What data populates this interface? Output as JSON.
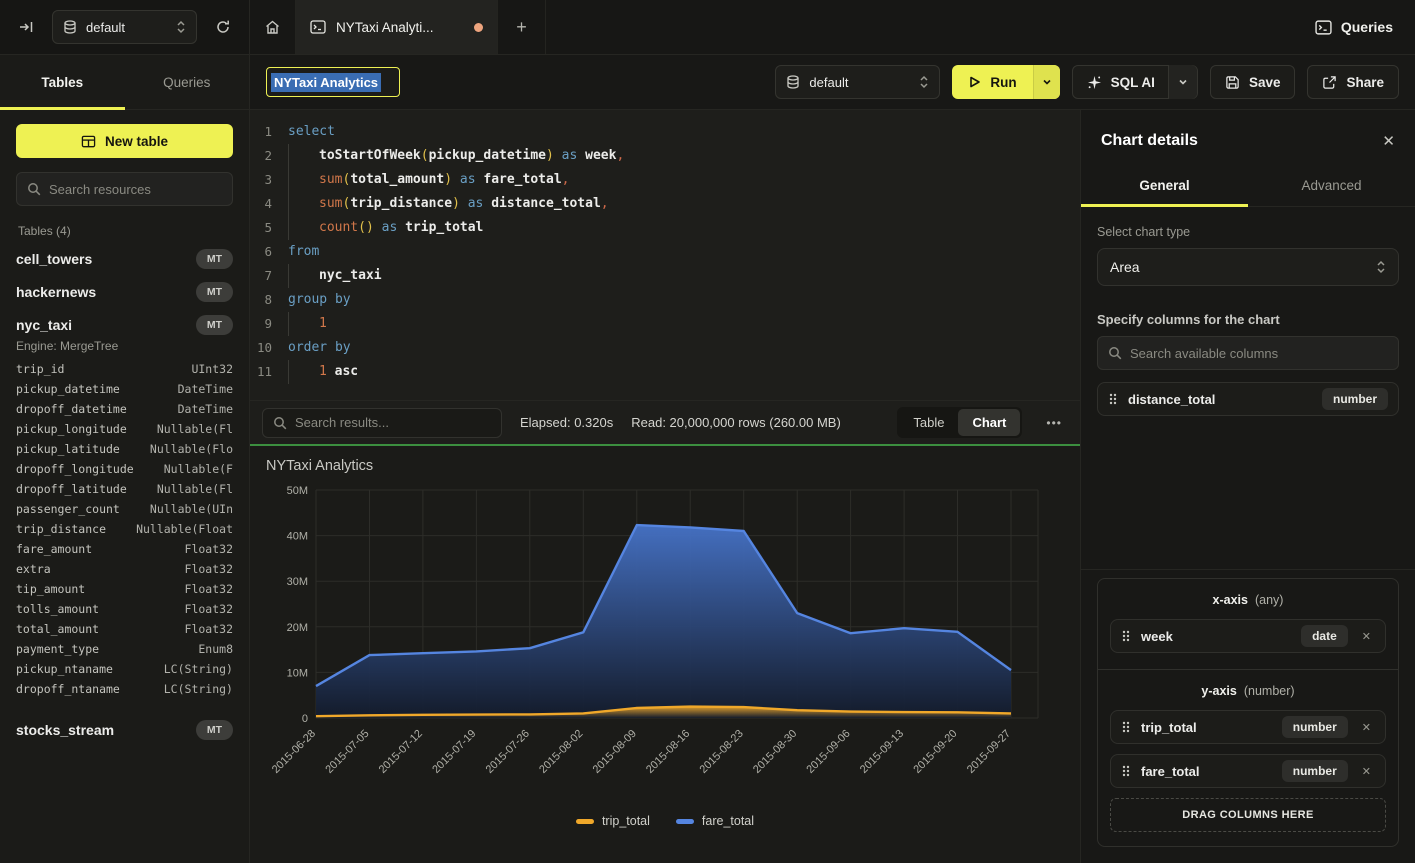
{
  "theme": {
    "accent": "#eef153",
    "sel": "#3a6db3",
    "dot": "#eda47e",
    "green": "#3c8f3f",
    "blue": "#5585e0",
    "orange": "#f0a82a"
  },
  "topbar": {
    "database_selector": "default",
    "tab_title": "NYTaxi Analyti...",
    "queries_label": "Queries",
    "plus": "+"
  },
  "sidebar": {
    "tab_tables": "Tables",
    "tab_queries": "Queries",
    "new_table_label": "New table",
    "search_placeholder": "Search resources",
    "section_label": "Tables (4)",
    "tables": [
      {
        "name": "cell_towers",
        "badge": "MT"
      },
      {
        "name": "hackernews",
        "badge": "MT"
      },
      {
        "name": "nyc_taxi",
        "badge": "MT",
        "engine": "Engine: MergeTree",
        "columns": [
          {
            "name": "trip_id",
            "type": "UInt32"
          },
          {
            "name": "pickup_datetime",
            "type": "DateTime"
          },
          {
            "name": "dropoff_datetime",
            "type": "DateTime"
          },
          {
            "name": "pickup_longitude",
            "type": "Nullable(Fl"
          },
          {
            "name": "pickup_latitude",
            "type": "Nullable(Flo"
          },
          {
            "name": "dropoff_longitude",
            "type": "Nullable(F"
          },
          {
            "name": "dropoff_latitude",
            "type": "Nullable(Fl"
          },
          {
            "name": "passenger_count",
            "type": "Nullable(UIn"
          },
          {
            "name": "trip_distance",
            "type": "Nullable(Float"
          },
          {
            "name": "fare_amount",
            "type": "Float32"
          },
          {
            "name": "extra",
            "type": "Float32"
          },
          {
            "name": "tip_amount",
            "type": "Float32"
          },
          {
            "name": "tolls_amount",
            "type": "Float32"
          },
          {
            "name": "total_amount",
            "type": "Float32"
          },
          {
            "name": "payment_type",
            "type": "Enum8"
          },
          {
            "name": "pickup_ntaname",
            "type": "LC(String)"
          },
          {
            "name": "dropoff_ntaname",
            "type": "LC(String)"
          }
        ]
      },
      {
        "name": "stocks_stream",
        "badge": "MT"
      }
    ]
  },
  "toolbar": {
    "query_title": "NYTaxi Analytics",
    "database_selector": "default",
    "run_label": "Run",
    "sql_ai_label": "SQL AI",
    "save_label": "Save",
    "share_label": "Share"
  },
  "editor": {
    "lines": [
      {
        "no": "1",
        "indent": 0,
        "tokens": [
          [
            "select",
            "kw"
          ]
        ]
      },
      {
        "no": "2",
        "indent": 1,
        "tokens": [
          [
            "toStartOfWeek",
            "fnb"
          ],
          [
            "(",
            "p"
          ],
          [
            "pickup_datetime",
            "id"
          ],
          [
            ")",
            "p"
          ],
          [
            " ",
            "pl"
          ],
          [
            "as",
            "kw"
          ],
          [
            " week",
            "id"
          ],
          [
            ",",
            "cm"
          ]
        ]
      },
      {
        "no": "3",
        "indent": 1,
        "tokens": [
          [
            "sum",
            "fn"
          ],
          [
            "(",
            "p"
          ],
          [
            "total_amount",
            "id"
          ],
          [
            ")",
            "p"
          ],
          [
            " ",
            "pl"
          ],
          [
            "as",
            "kw"
          ],
          [
            " fare_total",
            "id"
          ],
          [
            ",",
            "cm"
          ]
        ]
      },
      {
        "no": "4",
        "indent": 1,
        "tokens": [
          [
            "sum",
            "fn"
          ],
          [
            "(",
            "p"
          ],
          [
            "trip_distance",
            "id"
          ],
          [
            ")",
            "p"
          ],
          [
            " ",
            "pl"
          ],
          [
            "as",
            "kw"
          ],
          [
            " distance_total",
            "id"
          ],
          [
            ",",
            "cm"
          ]
        ]
      },
      {
        "no": "5",
        "indent": 1,
        "tokens": [
          [
            "count",
            "fn"
          ],
          [
            "()",
            "p"
          ],
          [
            " ",
            "pl"
          ],
          [
            "as",
            "kw"
          ],
          [
            " trip_total",
            "id"
          ]
        ]
      },
      {
        "no": "6",
        "indent": 0,
        "tokens": [
          [
            "from",
            "kw"
          ]
        ]
      },
      {
        "no": "7",
        "indent": 1,
        "tokens": [
          [
            "nyc_taxi",
            "id"
          ]
        ]
      },
      {
        "no": "8",
        "indent": 0,
        "tokens": [
          [
            "group by",
            "kw"
          ]
        ]
      },
      {
        "no": "9",
        "indent": 1,
        "tokens": [
          [
            "1",
            "num"
          ]
        ]
      },
      {
        "no": "10",
        "indent": 0,
        "tokens": [
          [
            "order by",
            "kw"
          ]
        ]
      },
      {
        "no": "11",
        "indent": 1,
        "tokens": [
          [
            "1",
            "num"
          ],
          [
            " ",
            "pl"
          ],
          [
            "asc",
            "id"
          ]
        ]
      }
    ]
  },
  "results": {
    "search_placeholder": "Search results...",
    "elapsed": "Elapsed: 0.320s",
    "read": "Read: 20,000,000 rows (260.00 MB)",
    "view_table": "Table",
    "view_chart": "Chart",
    "active_view": "Chart",
    "more_icon": "•••"
  },
  "chart_data": {
    "type": "area",
    "title": "NYTaxi Analytics",
    "categories": [
      "2015-06-28",
      "2015-07-05",
      "2015-07-12",
      "2015-07-19",
      "2015-07-26",
      "2015-08-02",
      "2015-08-09",
      "2015-08-16",
      "2015-08-23",
      "2015-08-30",
      "2015-09-06",
      "2015-09-13",
      "2015-09-20",
      "2015-09-27"
    ],
    "series": [
      {
        "name": "trip_total",
        "color": "#f0a82a",
        "values_millions": [
          0.4,
          0.6,
          0.7,
          0.75,
          0.8,
          1.0,
          2.2,
          2.5,
          2.4,
          1.7,
          1.4,
          1.3,
          1.25,
          1.0
        ]
      },
      {
        "name": "fare_total",
        "color": "#5585e0",
        "values_millions": [
          7,
          13.8,
          14.2,
          14.6,
          15.3,
          18.8,
          42.3,
          41.8,
          41.0,
          23.0,
          18.6,
          19.7,
          18.9,
          10.5
        ]
      }
    ],
    "ylim_millions": [
      0,
      50
    ],
    "yticks": [
      "0",
      "10M",
      "20M",
      "30M",
      "40M",
      "50M"
    ],
    "xlabel": "",
    "ylabel": "",
    "grid": true,
    "legend_position": "bottom"
  },
  "panel": {
    "title": "Chart details",
    "tab_general": "General",
    "tab_advanced": "Advanced",
    "active_tab": "General",
    "chart_type_label": "Select chart type",
    "chart_type_value": "Area",
    "columns_label": "Specify columns for the chart",
    "columns_search_placeholder": "Search available columns",
    "available_columns": [
      {
        "name": "distance_total",
        "type": "number"
      }
    ],
    "x_axis": {
      "label": "x-axis",
      "hint": "(any)",
      "chips": [
        {
          "name": "week",
          "type": "date"
        }
      ]
    },
    "y_axis": {
      "label": "y-axis",
      "hint": "(number)",
      "chips": [
        {
          "name": "trip_total",
          "type": "number"
        },
        {
          "name": "fare_total",
          "type": "number"
        }
      ]
    },
    "drop_label": "DRAG COLUMNS HERE"
  }
}
